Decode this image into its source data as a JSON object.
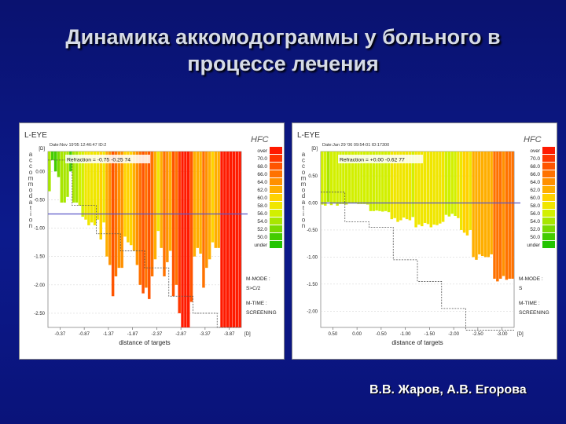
{
  "slide": {
    "title_line1": "Динамика аккомодограммы у больного в",
    "title_line2": "процессе лечения",
    "authors": "В.В. Жаров, А.В. Егорова"
  },
  "chart_data": [
    {
      "type": "bar",
      "eye_label": "L-EYE",
      "brand": "HFC",
      "date_text": "Date:Nov 19'05 12:46:47  ID:2",
      "refraction_text": "Refraction = -0.75 -0.25  74",
      "ylabel": "accommodation",
      "y_unit": "[D]",
      "x_unit": "[D]",
      "xlabel": "distance of targets",
      "y_ticks": [
        "-2.50",
        "-2.00",
        "-1.50",
        "-1.00",
        "-0.50",
        "0.00"
      ],
      "y_tick_values": [
        -2.5,
        -2.0,
        -1.5,
        -1.0,
        -0.5,
        0.0
      ],
      "ylim": [
        0.35,
        -2.75
      ],
      "x_ticks": [
        "-0.37",
        "-0.87",
        "-1.37",
        "-1.87",
        "-2.37",
        "-2.87",
        "-3.37",
        "-3.87"
      ],
      "xlim": [
        0,
        16
      ],
      "reference_line": -0.75,
      "target_steps": [
        0.2,
        -0.6,
        -1.1,
        -1.4,
        -1.7,
        -2.2,
        -2.5,
        -2.75
      ],
      "values": [
        -0.35,
        0.2,
        0.0,
        -0.1,
        -0.55,
        -0.55,
        -0.45,
        0.0,
        -0.55,
        -0.55,
        -0.6,
        -0.8,
        -0.85,
        -0.95,
        -0.9,
        -0.95,
        -0.85,
        -1.2,
        -0.9,
        -1.5,
        -1.65,
        -2.2,
        -1.85,
        -1.7,
        -1.7,
        -1.15,
        -1.25,
        -1.3,
        -1.4,
        -1.65,
        -2.0,
        -2.15,
        -2.05,
        -2.25,
        -1.85,
        -1.55,
        -1.05,
        -1.35,
        -1.85,
        -1.6,
        -1.4,
        -2.2,
        -2.0,
        -2.5,
        -2.75,
        -2.75,
        -2.75,
        -2.3,
        -1.5,
        -1.35,
        -1.45,
        -2.05,
        -1.7,
        -1.55,
        -1.25,
        -1.35,
        -1.35,
        -2.75,
        -2.75,
        -2.75,
        -2.75,
        -2.75,
        -2.75,
        -2.75
      ],
      "legend": [
        "over",
        "70.0",
        "68.0",
        "66.0",
        "64.0",
        "62.0",
        "60.0",
        "58.0",
        "56.0",
        "54.0",
        "52.0",
        "50.0",
        "under"
      ],
      "legend_colors": [
        "#ff1a00",
        "#ff3600",
        "#ff5400",
        "#ff7200",
        "#ff9000",
        "#ffae00",
        "#ffd200",
        "#f0e600",
        "#d2f000",
        "#a8e600",
        "#7ada00",
        "#44cc00",
        "#22c400"
      ],
      "mode_label": "M-MODE :",
      "mode_value": "S>C/2",
      "time_label": "M-TIME :",
      "time_value": "SCREENING"
    },
    {
      "type": "bar",
      "eye_label": "L-EYE",
      "brand": "HFC",
      "date_text": "Date:Jan 29 '06 09:54:01  ID:17300",
      "refraction_text": "Refraction = +0.00 -0.62  77",
      "ylabel": "accommodation",
      "y_unit": "[D]",
      "x_unit": "[D]",
      "xlabel": "distance of targets",
      "y_ticks": [
        "-2.00",
        "-1.50",
        "-1.00",
        "-0.50",
        "0.00",
        "0.50"
      ],
      "y_tick_values": [
        -2.0,
        -1.5,
        -1.0,
        -0.5,
        0.0,
        0.5
      ],
      "ylim": [
        0.95,
        -2.3
      ],
      "x_ticks": [
        "0.50",
        "0.00",
        "-0.50",
        "-1.00",
        "-1.50",
        "-2.00",
        "-2.50",
        "-3.00"
      ],
      "xlim": [
        0,
        16
      ],
      "reference_line": 0.0,
      "target_steps": [
        0.2,
        -0.35,
        -0.45,
        -1.05,
        -1.45,
        -1.95,
        -2.35,
        -2.35
      ],
      "values": [
        -0.03,
        -0.05,
        0.02,
        -0.04,
        -0.01,
        -0.05,
        -0.02,
        -0.02,
        -0.03,
        -0.01,
        -0.01,
        -0.01,
        -0.02,
        -0.02,
        -0.02,
        -0.03,
        -0.15,
        -0.15,
        -0.14,
        -0.15,
        -0.16,
        -0.15,
        -0.17,
        -0.3,
        -0.28,
        -0.35,
        -0.32,
        -0.27,
        -0.3,
        -0.32,
        -0.26,
        -0.45,
        -0.4,
        -0.43,
        -0.37,
        -0.39,
        -0.45,
        -0.4,
        -0.41,
        -0.38,
        -0.35,
        -0.22,
        -0.25,
        -0.2,
        -0.24,
        -0.28,
        -0.5,
        -0.55,
        -0.6,
        -0.5,
        -1.0,
        -1.05,
        -0.95,
        -0.98,
        -1.0,
        -1.0,
        -0.95,
        -1.4,
        -1.45,
        -1.4,
        -1.35,
        -1.42,
        -1.4,
        -1.4
      ],
      "legend": [
        "over",
        "70.0",
        "68.0",
        "66.0",
        "64.0",
        "62.0",
        "60.0",
        "58.0",
        "56.0",
        "54.0",
        "52.0",
        "50.0",
        "under"
      ],
      "legend_colors": [
        "#ff1a00",
        "#ff3600",
        "#ff5400",
        "#ff7200",
        "#ff9000",
        "#ffae00",
        "#ffd200",
        "#f0e600",
        "#d2f000",
        "#a8e600",
        "#7ada00",
        "#44cc00",
        "#22c400"
      ],
      "mode_label": "M-MODE :",
      "mode_value": "S",
      "time_label": "M-TIME :",
      "time_value": "SCREENING"
    }
  ]
}
